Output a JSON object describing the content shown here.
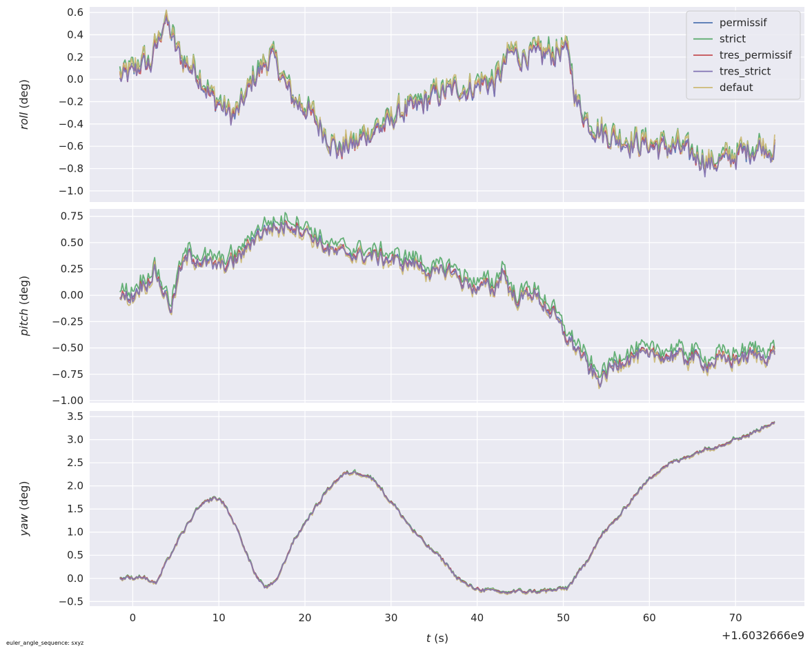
{
  "chart_data": {
    "type": "line",
    "xlabel": "t (s)",
    "xlabel_var": "t",
    "xlabel_unit": "(s)",
    "x_offset_label": "+1.6032666e9",
    "xlim": [
      -5,
      78
    ],
    "x_ticks": [
      0,
      10,
      20,
      30,
      40,
      50,
      60,
      70
    ],
    "grid": true,
    "legend_location": "top-right",
    "footnote": "euler_angle_sequence: sxyz",
    "series": [
      {
        "name": "permissif",
        "color": "#4c72b0"
      },
      {
        "name": "strict",
        "color": "#55a868"
      },
      {
        "name": "tres_permissif",
        "color": "#c44e52"
      },
      {
        "name": "tres_strict",
        "color": "#8172b3"
      },
      {
        "name": "defaut",
        "color": "#ccb974"
      }
    ],
    "subplots": [
      {
        "id": "roll",
        "ylabel_var": "roll",
        "ylabel_unit": "(deg)",
        "ylim": [
          -1.1,
          0.65
        ],
        "y_ticks": [
          -1.0,
          -0.8,
          -0.6,
          -0.4,
          -0.2,
          0.0,
          0.2,
          0.4,
          0.6
        ],
        "y_tick_labels": [
          "−1.0",
          "−0.8",
          "−0.6",
          "−0.4",
          "−0.2",
          "0.0",
          "0.2",
          "0.4",
          "0.6"
        ],
        "approx_profile": [
          [
            -1.5,
            0.02
          ],
          [
            0,
            0.05
          ],
          [
            1,
            0.15
          ],
          [
            2,
            0.12
          ],
          [
            3,
            0.35
          ],
          [
            3.7,
            0.55
          ],
          [
            5,
            0.28
          ],
          [
            6,
            0.15
          ],
          [
            7,
            0.1
          ],
          [
            8,
            0.0
          ],
          [
            9,
            -0.15
          ],
          [
            10,
            -0.22
          ],
          [
            11,
            -0.3
          ],
          [
            12,
            -0.33
          ],
          [
            13,
            -0.18
          ],
          [
            14,
            0.0
          ],
          [
            15,
            0.1
          ],
          [
            16,
            0.2
          ],
          [
            17,
            0.1
          ],
          [
            18,
            -0.1
          ],
          [
            19,
            -0.2
          ],
          [
            20,
            -0.25
          ],
          [
            21,
            -0.35
          ],
          [
            22,
            -0.45
          ],
          [
            23,
            -0.55
          ],
          [
            24,
            -0.65
          ],
          [
            25,
            -0.58
          ],
          [
            26,
            -0.6
          ],
          [
            27,
            -0.5
          ],
          [
            28,
            -0.45
          ],
          [
            29,
            -0.42
          ],
          [
            30,
            -0.38
          ],
          [
            31,
            -0.3
          ],
          [
            32,
            -0.28
          ],
          [
            33,
            -0.25
          ],
          [
            34,
            -0.2
          ],
          [
            35,
            -0.15
          ],
          [
            36,
            -0.12
          ],
          [
            37,
            -0.1
          ],
          [
            38,
            -0.08
          ],
          [
            39,
            -0.1
          ],
          [
            40,
            -0.05
          ],
          [
            41,
            -0.02
          ],
          [
            42,
            -0.05
          ],
          [
            43,
            0.1
          ],
          [
            44,
            0.25
          ],
          [
            45,
            0.2
          ],
          [
            46,
            0.22
          ],
          [
            47,
            0.2
          ],
          [
            48,
            0.23
          ],
          [
            49,
            0.22
          ],
          [
            50,
            0.28
          ],
          [
            50.8,
            0.15
          ],
          [
            51.5,
            -0.2
          ],
          [
            53,
            -0.4
          ],
          [
            55,
            -0.5
          ],
          [
            57,
            -0.55
          ],
          [
            59,
            -0.58
          ],
          [
            61,
            -0.6
          ],
          [
            63,
            -0.62
          ],
          [
            65,
            -0.68
          ],
          [
            67,
            -0.75
          ],
          [
            69,
            -0.72
          ],
          [
            71,
            -0.65
          ],
          [
            73,
            -0.6
          ],
          [
            74.5,
            -0.62
          ]
        ]
      },
      {
        "id": "pitch",
        "ylabel_var": "pitch",
        "ylabel_unit": "(deg)",
        "ylim": [
          -1.02,
          0.82
        ],
        "y_ticks": [
          -1.0,
          -0.75,
          -0.5,
          -0.25,
          0.0,
          0.25,
          0.5,
          0.75
        ],
        "y_tick_labels": [
          "−1.00",
          "−0.75",
          "−0.50",
          "−0.25",
          "0.00",
          "0.25",
          "0.50",
          "0.75"
        ],
        "approx_profile": [
          [
            -1.5,
            -0.02
          ],
          [
            0,
            0.0
          ],
          [
            1,
            0.1
          ],
          [
            2,
            0.15
          ],
          [
            2.5,
            0.25
          ],
          [
            3.5,
            0.05
          ],
          [
            4.5,
            -0.12
          ],
          [
            5.5,
            0.25
          ],
          [
            6.5,
            0.38
          ],
          [
            7.5,
            0.35
          ],
          [
            8.5,
            0.3
          ],
          [
            10,
            0.28
          ],
          [
            11,
            0.3
          ],
          [
            12,
            0.35
          ],
          [
            13,
            0.42
          ],
          [
            14,
            0.55
          ],
          [
            15,
            0.6
          ],
          [
            16,
            0.65
          ],
          [
            17,
            0.64
          ],
          [
            18,
            0.68
          ],
          [
            19,
            0.65
          ],
          [
            20,
            0.62
          ],
          [
            21,
            0.55
          ],
          [
            22,
            0.48
          ],
          [
            23,
            0.42
          ],
          [
            25,
            0.4
          ],
          [
            27,
            0.38
          ],
          [
            29,
            0.36
          ],
          [
            31,
            0.32
          ],
          [
            33,
            0.3
          ],
          [
            35,
            0.2
          ],
          [
            37,
            0.25
          ],
          [
            38,
            0.15
          ],
          [
            39,
            0.12
          ],
          [
            40,
            0.05
          ],
          [
            41,
            0.1
          ],
          [
            42,
            0.05
          ],
          [
            43,
            0.25
          ],
          [
            44,
            0.0
          ],
          [
            45,
            -0.05
          ],
          [
            46,
            0.05
          ],
          [
            47,
            -0.02
          ],
          [
            48,
            -0.1
          ],
          [
            49,
            -0.2
          ],
          [
            50,
            -0.35
          ],
          [
            51,
            -0.45
          ],
          [
            52,
            -0.55
          ],
          [
            53,
            -0.7
          ],
          [
            54,
            -0.8
          ],
          [
            55,
            -0.75
          ],
          [
            56,
            -0.65
          ],
          [
            57,
            -0.6
          ],
          [
            58,
            -0.58
          ],
          [
            59,
            -0.55
          ],
          [
            60,
            -0.6
          ],
          [
            61,
            -0.55
          ],
          [
            62,
            -0.58
          ],
          [
            63,
            -0.55
          ],
          [
            64,
            -0.6
          ],
          [
            65,
            -0.58
          ],
          [
            66,
            -0.62
          ],
          [
            67,
            -0.65
          ],
          [
            68,
            -0.6
          ],
          [
            69,
            -0.62
          ],
          [
            70,
            -0.6
          ],
          [
            71,
            -0.58
          ],
          [
            72,
            -0.56
          ],
          [
            73,
            -0.58
          ],
          [
            74.5,
            -0.55
          ]
        ]
      },
      {
        "id": "yaw",
        "ylabel_var": "yaw",
        "ylabel_unit": "(deg)",
        "ylim": [
          -0.6,
          3.62
        ],
        "y_ticks": [
          -0.5,
          0.0,
          0.5,
          1.0,
          1.5,
          2.0,
          2.5,
          3.0,
          3.5
        ],
        "y_tick_labels": [
          "−0.5",
          "0.0",
          "0.5",
          "1.0",
          "1.5",
          "2.0",
          "2.5",
          "3.0",
          "3.5"
        ],
        "approx_profile": [
          [
            -1.5,
            0.0
          ],
          [
            0,
            0.02
          ],
          [
            1,
            0.05
          ],
          [
            2,
            -0.05
          ],
          [
            2.8,
            -0.1
          ],
          [
            3.5,
            0.2
          ],
          [
            4.5,
            0.55
          ],
          [
            5.5,
            0.9
          ],
          [
            6.5,
            1.2
          ],
          [
            7.5,
            1.5
          ],
          [
            8.5,
            1.65
          ],
          [
            9.5,
            1.75
          ],
          [
            10.5,
            1.65
          ],
          [
            11.5,
            1.3
          ],
          [
            12.5,
            0.9
          ],
          [
            13.5,
            0.4
          ],
          [
            14.5,
            0.0
          ],
          [
            15.5,
            -0.2
          ],
          [
            16.5,
            -0.1
          ],
          [
            17.5,
            0.3
          ],
          [
            18.5,
            0.75
          ],
          [
            19.5,
            1.05
          ],
          [
            20.5,
            1.35
          ],
          [
            21.5,
            1.6
          ],
          [
            22.5,
            1.9
          ],
          [
            23.5,
            2.1
          ],
          [
            24.5,
            2.25
          ],
          [
            25.5,
            2.3
          ],
          [
            26.5,
            2.28
          ],
          [
            27.5,
            2.2
          ],
          [
            28.5,
            2.05
          ],
          [
            29.5,
            1.75
          ],
          [
            30.5,
            1.55
          ],
          [
            31.5,
            1.3
          ],
          [
            32.5,
            1.05
          ],
          [
            33.5,
            0.85
          ],
          [
            34.5,
            0.65
          ],
          [
            35.5,
            0.5
          ],
          [
            36.5,
            0.3
          ],
          [
            37.5,
            0.05
          ],
          [
            38.5,
            -0.1
          ],
          [
            39.5,
            -0.2
          ],
          [
            41,
            -0.25
          ],
          [
            43,
            -0.3
          ],
          [
            45,
            -0.28
          ],
          [
            47,
            -0.28
          ],
          [
            49,
            -0.25
          ],
          [
            50.5,
            -0.2
          ],
          [
            51.5,
            0.05
          ],
          [
            52.5,
            0.3
          ],
          [
            53.5,
            0.65
          ],
          [
            54.5,
            0.95
          ],
          [
            55.5,
            1.15
          ],
          [
            56.5,
            1.35
          ],
          [
            57.5,
            1.6
          ],
          [
            58.5,
            1.85
          ],
          [
            59.5,
            2.05
          ],
          [
            60.5,
            2.25
          ],
          [
            61.5,
            2.4
          ],
          [
            62.5,
            2.5
          ],
          [
            63.5,
            2.55
          ],
          [
            64.5,
            2.65
          ],
          [
            65.5,
            2.72
          ],
          [
            66.5,
            2.8
          ],
          [
            67.5,
            2.85
          ],
          [
            68.5,
            2.9
          ],
          [
            69.5,
            3.0
          ],
          [
            70.5,
            3.05
          ],
          [
            71.5,
            3.1
          ],
          [
            72.5,
            3.2
          ],
          [
            73.5,
            3.3
          ],
          [
            74.5,
            3.4
          ]
        ]
      }
    ]
  }
}
